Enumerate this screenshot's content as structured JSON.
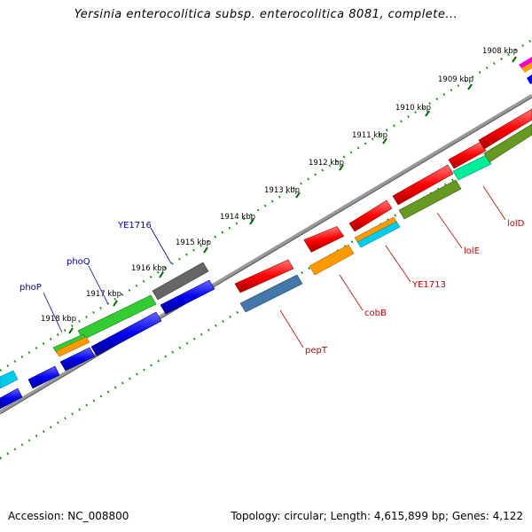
{
  "title": "Yersinia enterocolitica subsp. enterocolitica 8081, complete...",
  "footer": {
    "accession": "Accession: NC_008800",
    "summary": "Topology: circular; Length: 4,615,899 bp; Genes: 4,122"
  },
  "ticks": [
    "1908 kbp",
    "1909 kbp",
    "1910 kbp",
    "1911 kbp",
    "1912 kbp",
    "1913 kbp",
    "1914 kbp",
    "1915 kbp",
    "1916 kbp",
    "1917 kbp",
    "1918 kbp"
  ],
  "gene_labels": {
    "ye1716": "YE1716",
    "phoQ": "phoQ",
    "phoP": "phoP",
    "lolD": "lolD",
    "lolE": "lolE",
    "ye1713": "YE1713",
    "cobB": "cobB",
    "pepT": "pepT"
  },
  "colors": {
    "red": "#ff0000",
    "blue": "#0000ee",
    "green": "#33cc33",
    "orange": "#ff9900",
    "cyan": "#00ccee",
    "gray": "#666666",
    "olive": "#669922",
    "steel": "#4477aa",
    "spring": "#00ee99",
    "magenta": "#ee00cc",
    "tick_green": "#008800",
    "backbone": "#888888"
  }
}
